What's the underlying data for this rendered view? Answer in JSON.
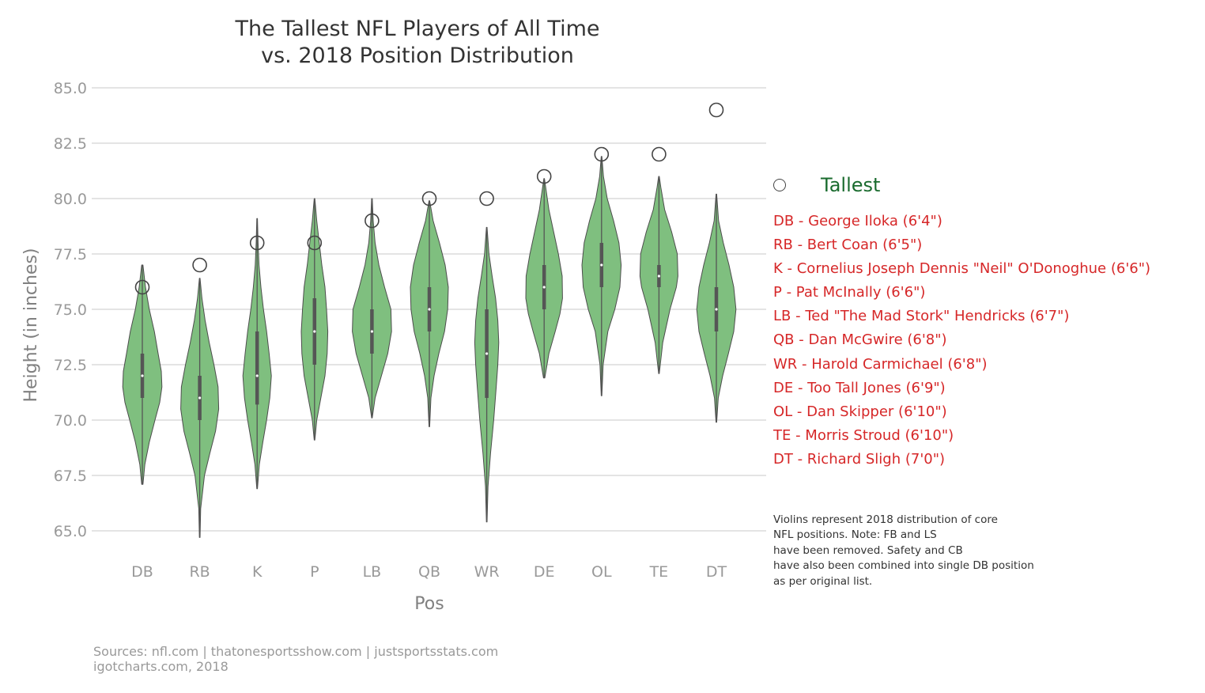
{
  "chart_data": {
    "type": "violin",
    "title_lines": [
      "The Tallest NFL Players of All Time",
      "vs. 2018 Position Distribution"
    ],
    "xlabel": "Pos",
    "ylabel": "Height (in inches)",
    "categories": [
      "DB",
      "RB",
      "K",
      "P",
      "LB",
      "QB",
      "WR",
      "DE",
      "OL",
      "TE",
      "DT"
    ],
    "ylim": [
      64.0,
      85.5
    ],
    "yticks": [
      65.0,
      67.5,
      70.0,
      72.5,
      75.0,
      77.5,
      80.0,
      82.5,
      85.0
    ],
    "ytick_labels": [
      "65.0",
      "67.5",
      "70.0",
      "72.5",
      "75.0",
      "77.5",
      "80.0",
      "82.5",
      "85.0"
    ],
    "grid": "horizontal",
    "violin_color": "#7fbf7f",
    "violin_edge_color": "#4d4d4d",
    "box_color": "#555555",
    "violins": [
      {
        "position": "DB",
        "min": 67.1,
        "q1": 71.0,
        "median": 72.0,
        "q3": 73.0,
        "max": 77.0,
        "profile": [
          [
            67.1,
            0.02
          ],
          [
            68,
            0.08
          ],
          [
            69,
            0.22
          ],
          [
            70,
            0.4
          ],
          [
            70.8,
            0.55
          ],
          [
            71.5,
            0.62
          ],
          [
            72.2,
            0.6
          ],
          [
            73,
            0.5
          ],
          [
            74,
            0.38
          ],
          [
            75,
            0.22
          ],
          [
            76,
            0.1
          ],
          [
            77,
            0.02
          ]
        ]
      },
      {
        "position": "RB",
        "min": 64.7,
        "q1": 70.0,
        "median": 71.0,
        "q3": 72.0,
        "max": 76.4,
        "profile": [
          [
            64.7,
            0.01
          ],
          [
            66,
            0.03
          ],
          [
            67.5,
            0.15
          ],
          [
            68.5,
            0.32
          ],
          [
            69.5,
            0.5
          ],
          [
            70.5,
            0.6
          ],
          [
            71.5,
            0.58
          ],
          [
            72.5,
            0.45
          ],
          [
            73.5,
            0.3
          ],
          [
            74.5,
            0.17
          ],
          [
            75.5,
            0.07
          ],
          [
            76.4,
            0.01
          ]
        ]
      },
      {
        "position": "K",
        "min": 66.9,
        "q1": 70.7,
        "median": 72.0,
        "q3": 74.0,
        "max": 79.1,
        "profile": [
          [
            66.9,
            0.01
          ],
          [
            68,
            0.07
          ],
          [
            69,
            0.18
          ],
          [
            70,
            0.3
          ],
          [
            71,
            0.4
          ],
          [
            72,
            0.45
          ],
          [
            73,
            0.38
          ],
          [
            74,
            0.3
          ],
          [
            75,
            0.2
          ],
          [
            76,
            0.12
          ],
          [
            77,
            0.06
          ],
          [
            78,
            0.03
          ],
          [
            79.1,
            0.01
          ]
        ]
      },
      {
        "position": "P",
        "min": 69.1,
        "q1": 72.5,
        "median": 74.0,
        "q3": 75.5,
        "max": 80.0,
        "profile": [
          [
            69.1,
            0.01
          ],
          [
            70,
            0.07
          ],
          [
            71,
            0.2
          ],
          [
            72,
            0.33
          ],
          [
            73,
            0.4
          ],
          [
            74,
            0.42
          ],
          [
            75,
            0.38
          ],
          [
            76,
            0.33
          ],
          [
            77,
            0.23
          ],
          [
            78,
            0.15
          ],
          [
            79,
            0.07
          ],
          [
            80,
            0.01
          ]
        ]
      },
      {
        "position": "LB",
        "min": 70.1,
        "q1": 73.0,
        "median": 74.0,
        "q3": 75.0,
        "max": 80.0,
        "profile": [
          [
            70.1,
            0.01
          ],
          [
            71,
            0.1
          ],
          [
            72,
            0.3
          ],
          [
            73,
            0.5
          ],
          [
            74,
            0.62
          ],
          [
            75,
            0.6
          ],
          [
            76,
            0.4
          ],
          [
            77,
            0.22
          ],
          [
            78,
            0.1
          ],
          [
            79,
            0.04
          ],
          [
            80,
            0.01
          ]
        ]
      },
      {
        "position": "QB",
        "min": 69.7,
        "q1": 74.0,
        "median": 75.0,
        "q3": 76.0,
        "max": 79.9,
        "profile": [
          [
            69.7,
            0.01
          ],
          [
            71,
            0.05
          ],
          [
            72,
            0.15
          ],
          [
            73,
            0.3
          ],
          [
            74,
            0.48
          ],
          [
            75,
            0.58
          ],
          [
            76,
            0.6
          ],
          [
            77,
            0.5
          ],
          [
            78,
            0.32
          ],
          [
            79,
            0.12
          ],
          [
            79.9,
            0.01
          ]
        ]
      },
      {
        "position": "WR",
        "min": 65.4,
        "q1": 71.0,
        "median": 73.0,
        "q3": 75.0,
        "max": 78.7,
        "profile": [
          [
            65.4,
            0.01
          ],
          [
            67,
            0.04
          ],
          [
            68.5,
            0.12
          ],
          [
            70,
            0.22
          ],
          [
            71.5,
            0.3
          ],
          [
            72.5,
            0.35
          ],
          [
            73.5,
            0.38
          ],
          [
            74.5,
            0.35
          ],
          [
            75.5,
            0.28
          ],
          [
            76.5,
            0.17
          ],
          [
            77.5,
            0.07
          ],
          [
            78.7,
            0.01
          ]
        ]
      },
      {
        "position": "DE",
        "min": 71.9,
        "q1": 75.0,
        "median": 76.0,
        "q3": 77.0,
        "max": 80.9,
        "profile": [
          [
            71.9,
            0.02
          ],
          [
            73,
            0.15
          ],
          [
            74,
            0.35
          ],
          [
            74.8,
            0.5
          ],
          [
            75.5,
            0.58
          ],
          [
            76.5,
            0.57
          ],
          [
            77.5,
            0.45
          ],
          [
            78.5,
            0.3
          ],
          [
            79.5,
            0.15
          ],
          [
            80.9,
            0.01
          ]
        ]
      },
      {
        "position": "OL",
        "min": 71.1,
        "q1": 76.0,
        "median": 77.0,
        "q3": 78.0,
        "max": 81.9,
        "profile": [
          [
            71.1,
            0.01
          ],
          [
            72.5,
            0.05
          ],
          [
            74,
            0.2
          ],
          [
            75,
            0.42
          ],
          [
            76,
            0.58
          ],
          [
            77,
            0.62
          ],
          [
            78,
            0.55
          ],
          [
            79,
            0.38
          ],
          [
            80,
            0.18
          ],
          [
            81,
            0.06
          ],
          [
            81.9,
            0.01
          ]
        ]
      },
      {
        "position": "TE",
        "min": 72.1,
        "q1": 76.0,
        "median": 76.5,
        "q3": 77.0,
        "max": 81.0,
        "profile": [
          [
            72.1,
            0.01
          ],
          [
            73.5,
            0.12
          ],
          [
            75,
            0.35
          ],
          [
            76,
            0.55
          ],
          [
            76.5,
            0.6
          ],
          [
            77.5,
            0.58
          ],
          [
            78.5,
            0.4
          ],
          [
            79.5,
            0.18
          ],
          [
            80.5,
            0.06
          ],
          [
            81,
            0.01
          ]
        ]
      },
      {
        "position": "DT",
        "min": 69.9,
        "q1": 74.0,
        "median": 75.0,
        "q3": 76.0,
        "max": 80.2,
        "profile": [
          [
            69.9,
            0.01
          ],
          [
            71,
            0.06
          ],
          [
            72,
            0.2
          ],
          [
            73,
            0.38
          ],
          [
            74,
            0.55
          ],
          [
            75,
            0.62
          ],
          [
            76,
            0.55
          ],
          [
            77,
            0.4
          ],
          [
            78,
            0.22
          ],
          [
            79,
            0.07
          ],
          [
            80.2,
            0.01
          ]
        ]
      }
    ],
    "tallest_points": [
      {
        "position": "DB",
        "height": 76
      },
      {
        "position": "RB",
        "height": 77
      },
      {
        "position": "K",
        "height": 78
      },
      {
        "position": "P",
        "height": 78
      },
      {
        "position": "LB",
        "height": 79
      },
      {
        "position": "QB",
        "height": 80
      },
      {
        "position": "WR",
        "height": 80
      },
      {
        "position": "DE",
        "height": 81
      },
      {
        "position": "OL",
        "height": 82
      },
      {
        "position": "TE",
        "height": 82
      },
      {
        "position": "DT",
        "height": 84
      }
    ],
    "legend": {
      "label": "Tallest",
      "label_color": "#1a6b2e",
      "placement": "right"
    },
    "tallest_list_color": "#d62728",
    "tallest_list": [
      "DB - George Iloka (6'4\")",
      "RB - Bert Coan (6'5\")",
      "K - Cornelius Joseph Dennis \"Neil\" O'Donoghue (6'6\")",
      "P - Pat McInally (6'6\")",
      "LB - Ted \"The Mad Stork\" Hendricks (6'7\")",
      "QB - Dan McGwire (6'8\")",
      "WR - Harold Carmichael (6'8\")",
      "DE - Too Tall Jones (6'9\")",
      "OL - Dan Skipper (6'10\")",
      "TE - Morris Stroud (6'10\")",
      "DT - Richard Sligh (7'0\")"
    ],
    "note_lines": [
      "Violins represent 2018 distribution of core",
      "NFL positions. Note: FB and LS",
      "have been removed. Safety and CB",
      "have also been combined into single DB position",
      "as per original list."
    ],
    "source_lines": [
      "Sources: nfl.com | thatonesportsshow.com | justsportsstats.com",
      "igotcharts.com, 2018"
    ]
  }
}
